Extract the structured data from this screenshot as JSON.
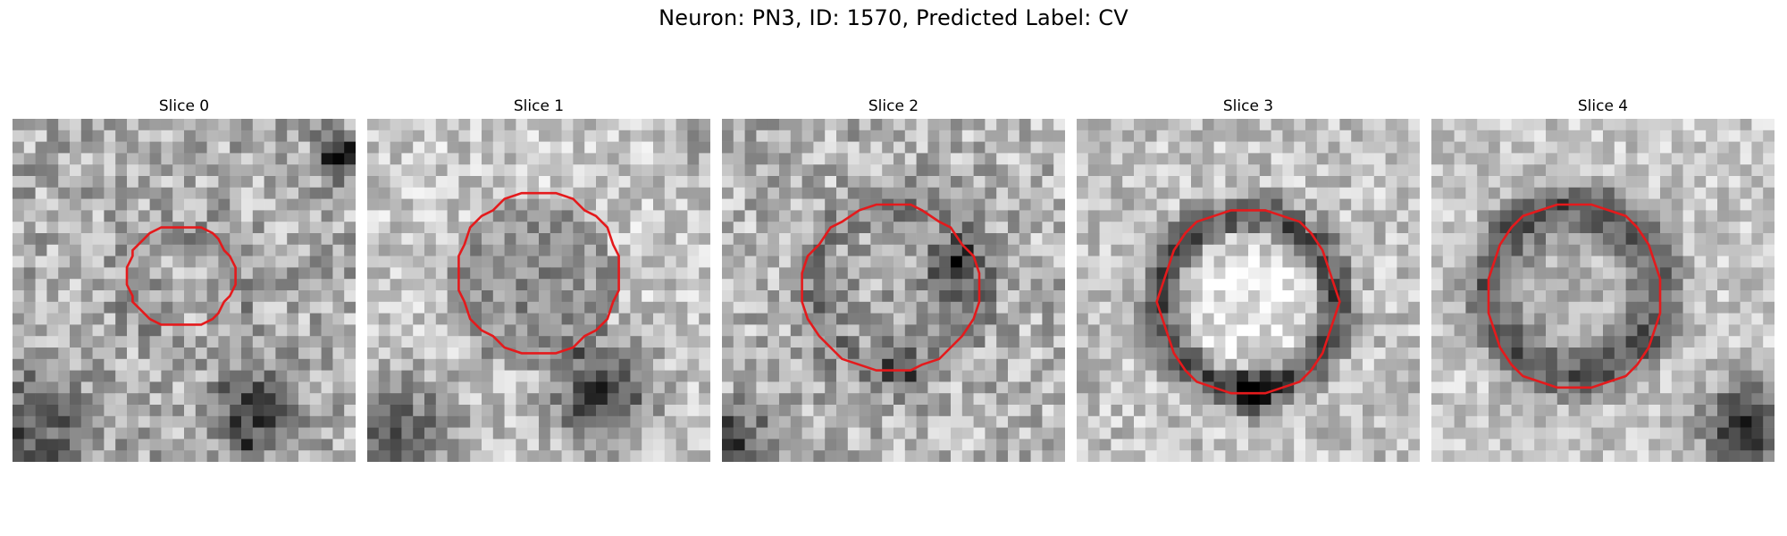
{
  "figure": {
    "title": "Neuron: PN3, ID: 1570, Predicted Label: CV",
    "contour_color": "#e41a1c",
    "colormap": "gray",
    "grid_size": 30
  },
  "slices": [
    {
      "label": "Slice 0",
      "pattern": "soft_ring_faint",
      "dark_blobs": [
        "top-right",
        "bottom-center-right",
        "bottom-left"
      ]
    },
    {
      "label": "Slice 1",
      "pattern": "dark_interior",
      "dark_blobs": [
        "bottom-right",
        "bottom-left"
      ]
    },
    {
      "label": "Slice 2",
      "pattern": "mixed_interior",
      "dark_blobs": [
        "right-inside",
        "bottom-left"
      ]
    },
    {
      "label": "Slice 3",
      "pattern": "bright_interior_dark_rim",
      "dark_blobs": [
        "bottom-center"
      ]
    },
    {
      "label": "Slice 4",
      "pattern": "dark_rim",
      "dark_blobs": [
        "bottom-right"
      ]
    }
  ]
}
